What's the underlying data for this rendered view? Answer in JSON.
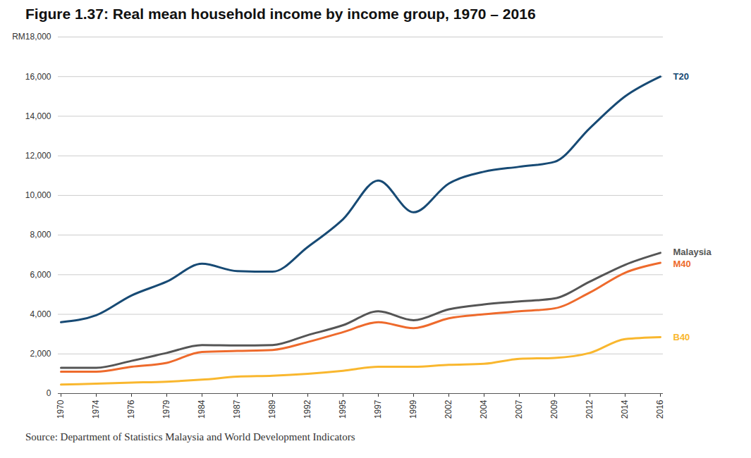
{
  "chart_data": {
    "type": "line",
    "title": "Figure 1.37: Real mean household income by income group, 1970 – 2016",
    "caption": "Source: Department of Statistics Malaysia and World Development Indicators",
    "categories": [
      "1970",
      "1974",
      "1976",
      "1979",
      "1984",
      "1987",
      "1989",
      "1992",
      "1995",
      "1997",
      "1999",
      "2002",
      "2004",
      "2007",
      "2009",
      "2012",
      "2014",
      "2016"
    ],
    "series": [
      {
        "name": "T20",
        "color": "#174a74",
        "values": [
          3600,
          3950,
          4950,
          5650,
          6550,
          6180,
          6150,
          7400,
          8800,
          10750,
          9150,
          10600,
          11200,
          11450,
          11700,
          13400,
          15000,
          16000
        ]
      },
      {
        "name": "Malaysia",
        "color": "#555555",
        "values": [
          1300,
          1300,
          1650,
          2050,
          2450,
          2430,
          2450,
          2950,
          3450,
          4150,
          3700,
          4250,
          4500,
          4650,
          4800,
          5650,
          6500,
          7100
        ]
      },
      {
        "name": "M40",
        "color": "#ee6a2c",
        "values": [
          1100,
          1100,
          1350,
          1550,
          2100,
          2150,
          2200,
          2600,
          3100,
          3600,
          3300,
          3800,
          4000,
          4150,
          4300,
          5100,
          6100,
          6600
        ]
      },
      {
        "name": "B40",
        "color": "#f9b72e",
        "values": [
          450,
          500,
          550,
          600,
          700,
          850,
          900,
          1000,
          1150,
          1350,
          1350,
          1450,
          1500,
          1750,
          1800,
          2050,
          2750,
          2850
        ]
      }
    ],
    "ylim": [
      0,
      18000
    ],
    "yticks": [
      0,
      {
        "value": 2000,
        "label": "2,000"
      },
      {
        "value": 4000,
        "label": "4,000"
      },
      {
        "value": 6000,
        "label": "6,000"
      },
      {
        "value": 8000,
        "label": "8,000"
      },
      {
        "value": 10000,
        "label": "10,000"
      },
      {
        "value": 12000,
        "label": "12,000"
      },
      {
        "value": 14000,
        "label": "14,000"
      },
      {
        "value": 16000,
        "label": "16,000"
      },
      {
        "value": 18000,
        "label": "RM18,000"
      }
    ],
    "grid": true
  }
}
